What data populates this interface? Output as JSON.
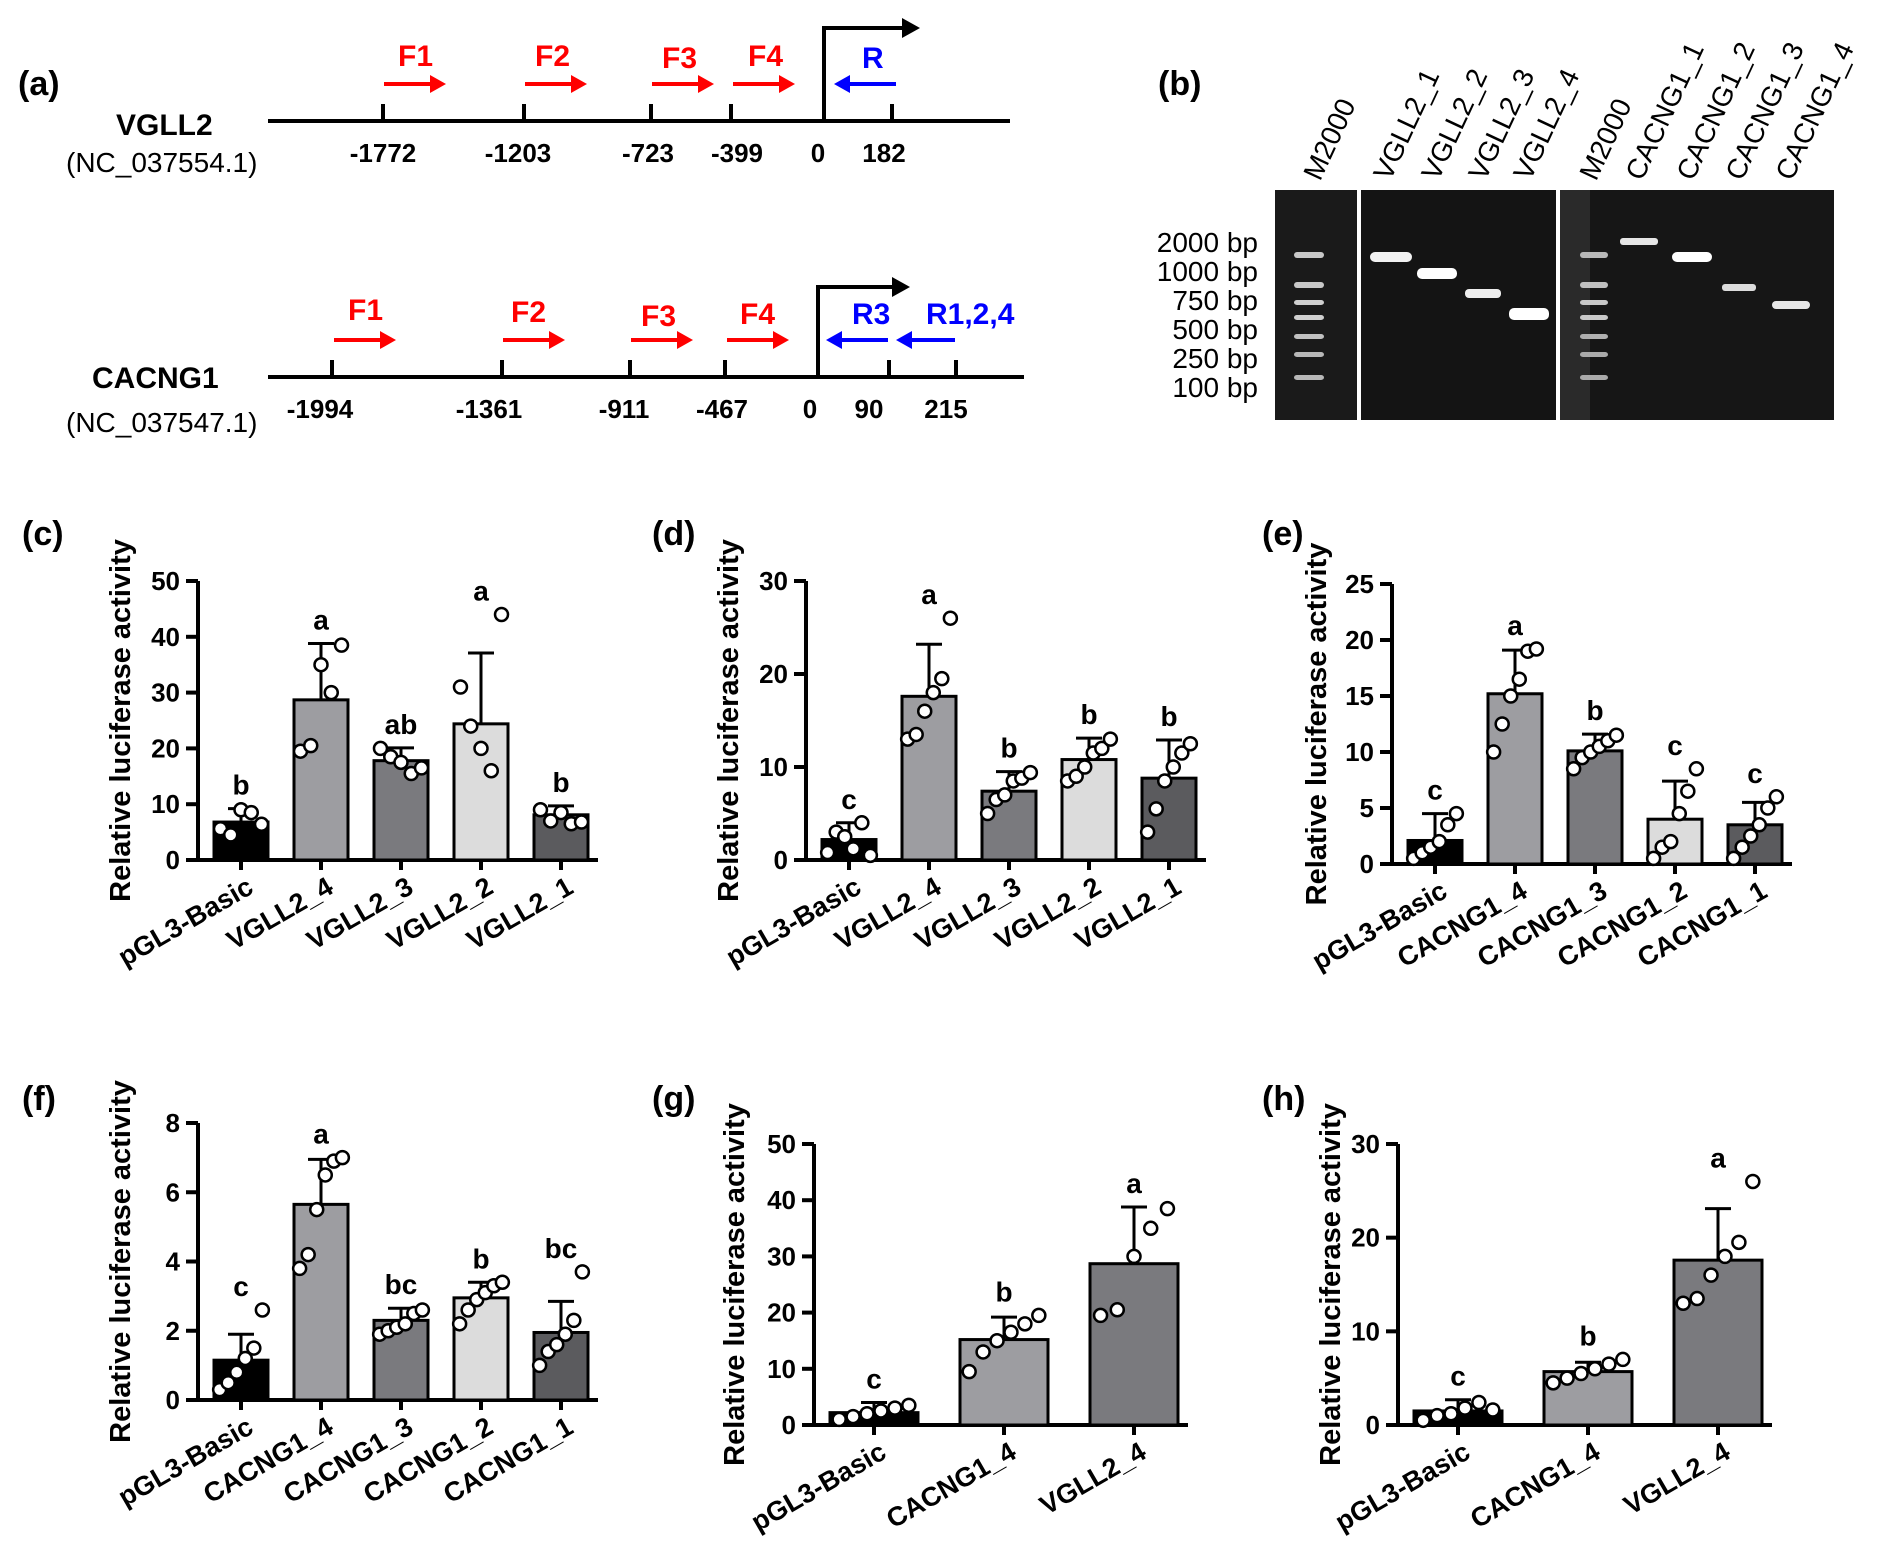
{
  "panel_a": {
    "letter": "(a)",
    "genes": [
      {
        "name": "VGLL2",
        "accession": "(NC_037554.1)",
        "positions": [
          "-1772",
          "-1203",
          "-723",
          "-399",
          "0",
          "182"
        ],
        "forward_primers": [
          "F1",
          "F2",
          "F3",
          "F4"
        ],
        "reverse_primers": [
          "R"
        ]
      },
      {
        "name": "CACNG1",
        "accession": "(NC_037547.1)",
        "positions": [
          "-1994",
          "-1361",
          "-911",
          "-467",
          "0",
          "90",
          "215"
        ],
        "forward_primers": [
          "F1",
          "F2",
          "F3",
          "F4"
        ],
        "reverse_primers": [
          "R3",
          "R1,2,4"
        ]
      }
    ],
    "colors": {
      "forward": "#ff0000",
      "reverse": "#0000ff"
    }
  },
  "panel_b": {
    "letter": "(b)",
    "lanes": [
      "M2000",
      "VGLL2_1",
      "VGLL2_2",
      "VGLL2_3",
      "VGLL2_4",
      "M2000",
      "CACNG1_1",
      "CACNG1_2",
      "CACNG1_3",
      "CACNG1_4"
    ],
    "ladder": [
      "2000 bp",
      "1000 bp",
      "750 bp",
      "500 bp",
      "250 bp",
      "100 bp"
    ]
  },
  "chart_data": [
    {
      "panel": "(c)",
      "type": "bar",
      "categories": [
        "pGL3-Basic",
        "VGLL2_4",
        "VGLL2_3",
        "VGLL2_2",
        "VGLL2_1"
      ],
      "values": [
        6.8,
        28.7,
        17.8,
        24.4,
        8.1
      ],
      "errors": [
        2.4,
        10.1,
        2.3,
        12.7,
        1.6
      ],
      "points": [
        [
          5.6,
          4.5,
          9.0,
          8.5,
          6.4
        ],
        [
          19.5,
          20.5,
          35.0,
          30.0,
          38.5
        ],
        [
          20.0,
          18.5,
          17.5,
          15.5,
          16.5
        ],
        [
          31.0,
          24.0,
          20.0,
          16.0,
          44.0
        ],
        [
          9.0,
          7.0,
          8.5,
          6.5,
          6.8
        ]
      ],
      "letters": [
        "b",
        "a",
        "ab",
        "a",
        "b"
      ],
      "fills": [
        "#000000",
        "#9d9da1",
        "#7a7a7e",
        "#dcdcdc",
        "#5b5b5e"
      ],
      "ylabel": "Relative luciferase activity",
      "ylim": [
        0,
        50
      ],
      "yticks": [
        "0",
        "10",
        "20",
        "30",
        "40",
        "50"
      ]
    },
    {
      "panel": "(d)",
      "type": "bar",
      "categories": [
        "pGL3-Basic",
        "VGLL2_4",
        "VGLL2_3",
        "VGLL2_2",
        "VGLL2_1"
      ],
      "values": [
        2.2,
        17.6,
        7.4,
        10.8,
        8.8
      ],
      "errors": [
        1.8,
        5.6,
        2.1,
        2.3,
        4.1
      ],
      "points": [
        [
          0.8,
          3.0,
          2.5,
          1.2,
          4.0,
          0.5
        ],
        [
          13.0,
          13.5,
          16.0,
          18.0,
          19.5,
          26.0
        ],
        [
          5.0,
          6.5,
          7.0,
          8.5,
          8.8,
          9.4
        ],
        [
          8.5,
          9.0,
          10.0,
          11.5,
          12.0,
          13.0
        ],
        [
          3.0,
          5.5,
          8.5,
          10.0,
          11.5,
          12.5
        ]
      ],
      "letters": [
        "c",
        "a",
        "b",
        "b",
        "b"
      ],
      "fills": [
        "#000000",
        "#9d9da1",
        "#7a7a7e",
        "#dcdcdc",
        "#5b5b5e"
      ],
      "ylabel": "Relative luciferase activity",
      "ylim": [
        0,
        30
      ],
      "yticks": [
        "0",
        "10",
        "20",
        "30"
      ]
    },
    {
      "panel": "(e)",
      "type": "bar",
      "categories": [
        "pGL3-Basic",
        "CACNG1_4",
        "CACNG1_3",
        "CACNG1_2",
        "CACNG1_1"
      ],
      "values": [
        2.1,
        15.2,
        10.1,
        4.0,
        3.5
      ],
      "errors": [
        2.4,
        3.9,
        1.5,
        3.4,
        2.0
      ],
      "points": [
        [
          0.5,
          1.0,
          1.5,
          2.0,
          3.5,
          4.5
        ],
        [
          10.0,
          12.5,
          15.0,
          16.5,
          19.0,
          19.2
        ],
        [
          8.5,
          9.5,
          10.0,
          10.5,
          11.0,
          11.5
        ],
        [
          0.5,
          1.5,
          2.0,
          4.5,
          6.5,
          8.5
        ],
        [
          0.5,
          1.5,
          2.5,
          3.5,
          5.0,
          6.0
        ]
      ],
      "letters": [
        "c",
        "a",
        "b",
        "c",
        "c"
      ],
      "fills": [
        "#000000",
        "#9d9da1",
        "#7a7a7e",
        "#dcdcdc",
        "#5b5b5e"
      ],
      "ylabel": "Relative luciferase activity",
      "ylim": [
        0,
        25
      ],
      "yticks": [
        "0",
        "5",
        "10",
        "15",
        "20",
        "25"
      ]
    },
    {
      "panel": "(f)",
      "type": "bar",
      "categories": [
        "pGL3-Basic",
        "CACNG1_4",
        "CACNG1_3",
        "CACNG1_2",
        "CACNG1_1"
      ],
      "values": [
        1.15,
        5.65,
        2.3,
        2.95,
        1.95
      ],
      "errors": [
        0.75,
        1.3,
        0.35,
        0.45,
        0.9
      ],
      "points": [
        [
          0.3,
          0.5,
          0.8,
          1.2,
          1.5,
          2.6
        ],
        [
          3.8,
          4.2,
          5.5,
          6.5,
          6.9,
          7.0
        ],
        [
          1.9,
          2.0,
          2.1,
          2.2,
          2.5,
          2.6
        ],
        [
          2.2,
          2.6,
          2.9,
          3.1,
          3.3,
          3.4
        ],
        [
          1.0,
          1.4,
          1.6,
          1.9,
          2.3,
          3.7
        ]
      ],
      "letters": [
        "c",
        "a",
        "bc",
        "b",
        "bc"
      ],
      "fills": [
        "#000000",
        "#9d9da1",
        "#7a7a7e",
        "#dcdcdc",
        "#5b5b5e"
      ],
      "ylabel": "Relative luciferase activity",
      "ylim": [
        0,
        8
      ],
      "yticks": [
        "0",
        "2",
        "4",
        "6",
        "8"
      ]
    },
    {
      "panel": "(g)",
      "type": "bar",
      "categories": [
        "pGL3-Basic",
        "CACNG1_4",
        "VGLL2_4"
      ],
      "values": [
        2.2,
        15.2,
        28.7
      ],
      "errors": [
        1.8,
        4.0,
        10.1
      ],
      "points": [
        [
          1.0,
          1.5,
          2.0,
          2.5,
          3.0,
          3.5
        ],
        [
          9.5,
          13.0,
          15.0,
          16.5,
          18.0,
          19.5
        ],
        [
          19.5,
          20.5,
          30.0,
          35.0,
          38.5
        ]
      ],
      "letters": [
        "c",
        "b",
        "a"
      ],
      "fills": [
        "#000000",
        "#9d9da1",
        "#7a7a7e"
      ],
      "ylabel": "Relative luciferase activity",
      "ylim": [
        0,
        50
      ],
      "yticks": [
        "0",
        "10",
        "20",
        "30",
        "40",
        "50"
      ]
    },
    {
      "panel": "(h)",
      "type": "bar",
      "categories": [
        "pGL3-Basic",
        "CACNG1_4",
        "VGLL2_4"
      ],
      "values": [
        1.5,
        5.7,
        17.6
      ],
      "errors": [
        1.2,
        1.0,
        5.5
      ],
      "points": [
        [
          0.5,
          1.0,
          1.2,
          1.8,
          2.4,
          1.6
        ],
        [
          4.5,
          5.0,
          5.5,
          6.0,
          6.5,
          7.0
        ],
        [
          13.0,
          13.5,
          16.0,
          18.0,
          19.5,
          26.0
        ]
      ],
      "letters": [
        "c",
        "b",
        "a"
      ],
      "fills": [
        "#000000",
        "#9d9da1",
        "#7a7a7e"
      ],
      "ylabel": "Relative luciferase activity",
      "ylim": [
        0,
        30
      ],
      "yticks": [
        "0",
        "10",
        "20",
        "30"
      ]
    }
  ]
}
